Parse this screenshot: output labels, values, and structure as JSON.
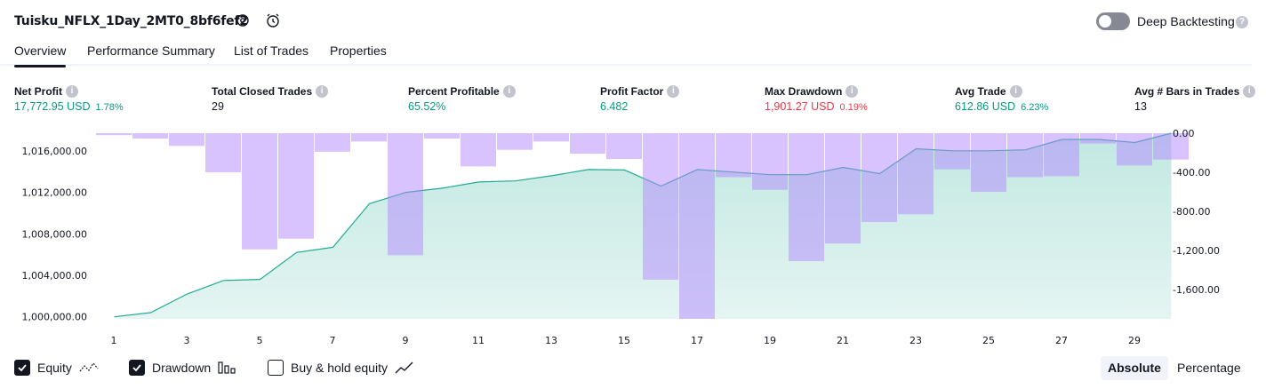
{
  "header": {
    "strategy_title": "Tuisku_NFLX_1Day_2MT0_8bf6fef2",
    "settings_icon": "gear-icon",
    "alert_icon": "alarm-clock-icon",
    "deep_backtesting_label": "Deep Backtesting",
    "deep_backtesting_enabled": false
  },
  "tabs": [
    {
      "label": "Overview",
      "active": true
    },
    {
      "label": "Performance Summary",
      "active": false
    },
    {
      "label": "List of Trades",
      "active": false
    },
    {
      "label": "Properties",
      "active": false
    }
  ],
  "metrics": [
    {
      "label": "Net Profit",
      "value": "17,772.95 USD",
      "pct": "1.78%",
      "color": "green"
    },
    {
      "label": "Total Closed Trades",
      "value": "29",
      "pct": "",
      "color": "dark"
    },
    {
      "label": "Percent Profitable",
      "value": "65.52%",
      "pct": "",
      "color": "green"
    },
    {
      "label": "Profit Factor",
      "value": "6.482",
      "pct": "",
      "color": "green"
    },
    {
      "label": "Max Drawdown",
      "value": "1,901.27 USD",
      "pct": "0.19%",
      "color": "red"
    },
    {
      "label": "Avg Trade",
      "value": "612.86 USD",
      "pct": "6.23%",
      "color": "green"
    },
    {
      "label": "Avg # Bars in Trades",
      "value": "13",
      "pct": "",
      "color": "dark"
    }
  ],
  "chart_data": {
    "type": "bar",
    "x": [
      1,
      2,
      3,
      4,
      5,
      6,
      7,
      8,
      9,
      10,
      11,
      12,
      13,
      14,
      15,
      16,
      17,
      18,
      19,
      20,
      21,
      22,
      23,
      24,
      25,
      26,
      27,
      28,
      29,
      30
    ],
    "x_tick_labels": [
      "1",
      "3",
      "5",
      "7",
      "9",
      "11",
      "13",
      "15",
      "17",
      "19",
      "21",
      "23",
      "25",
      "27",
      "29"
    ],
    "left_axis": {
      "ticks": [
        "1,016,000.00",
        "1,012,000.00",
        "1,008,000.00",
        "1,004,000.00",
        "1,000,000.00"
      ],
      "range": [
        999800,
        1017700
      ]
    },
    "right_axis": {
      "ticks": [
        "0.00",
        "-400.00",
        "-800.00",
        "-1,200.00",
        "-1,600.00"
      ],
      "range": [
        -1901.27,
        0
      ]
    },
    "series": [
      {
        "name": "Equity",
        "kind": "area",
        "color": "#22ab94",
        "values": [
          1000000,
          1000400,
          1002200,
          1003500,
          1003600,
          1006200,
          1006700,
          1010900,
          1012000,
          1012400,
          1013000,
          1013100,
          1013600,
          1014200,
          1014150,
          1012600,
          1014200,
          1013950,
          1013700,
          1013700,
          1014400,
          1013800,
          1016200,
          1016000,
          1016000,
          1016100,
          1017100,
          1017100,
          1016800,
          1017700
        ]
      },
      {
        "name": "Drawdown",
        "kind": "bar",
        "color": "#ce93d8",
        "values": [
          -20,
          -55,
          -130,
          -400,
          -1190,
          -1080,
          -190,
          -85,
          -1250,
          -55,
          -340,
          -170,
          -85,
          -210,
          -265,
          -1500,
          -1901.27,
          -450,
          -580,
          -1310,
          -1130,
          -910,
          -830,
          -370,
          -600,
          -450,
          -440,
          -105,
          -330,
          -270
        ]
      }
    ],
    "ylabel": "",
    "xlabel": "",
    "grid": false
  },
  "legend": [
    {
      "label": "Equity",
      "checked": true,
      "icon": "equity-line-icon"
    },
    {
      "label": "Drawdown",
      "checked": true,
      "icon": "drawdown-bars-icon"
    },
    {
      "label": "Buy & hold equity",
      "checked": false,
      "icon": "buy-hold-line-icon"
    }
  ],
  "mode": {
    "absolute_label": "Absolute",
    "percentage_label": "Percentage",
    "selected": "Absolute"
  }
}
